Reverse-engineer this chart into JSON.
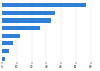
{
  "values": [
    57.1,
    36.0,
    33.2,
    25.7,
    12.5,
    7.4,
    4.5,
    2.3
  ],
  "bar_color": "#2f7ed8",
  "background_color": "#ffffff",
  "plot_bg_color": "#ffffff",
  "grid_color": "#e0e0e0",
  "xlim": [
    0,
    65
  ],
  "bar_height": 0.55,
  "n_bars": 8
}
